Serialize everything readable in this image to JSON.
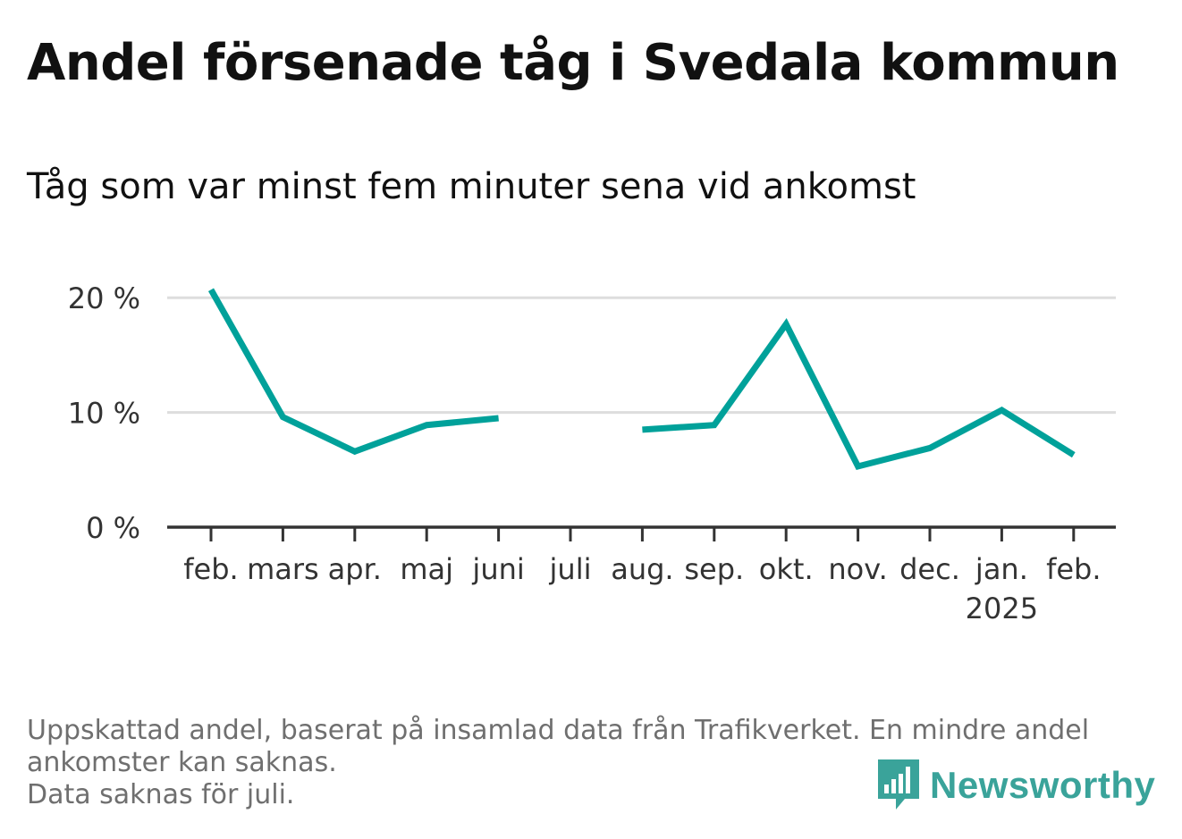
{
  "title": "Andel försenade tåg i Svedala kommun",
  "subtitle": "Tåg som var minst fem minuter sena vid ankomst",
  "footnote": {
    "line1": "Uppskattad andel, baserat på insamlad data från Trafikverket. En mindre andel",
    "line2": "ankomster kan saknas.",
    "line3": "Data saknas för juli."
  },
  "brand": {
    "name": "Newsworthy"
  },
  "colors": {
    "line": "#00a19a",
    "grid": "#dddddd",
    "axis": "#333333",
    "brand": "#3aa39a"
  },
  "chart_data": {
    "type": "line",
    "categories": [
      "feb.",
      "mars",
      "apr.",
      "maj",
      "juni",
      "juli",
      "aug.",
      "sep.",
      "okt.",
      "nov.",
      "dec.",
      "jan.",
      "feb."
    ],
    "year_label": {
      "index": 11,
      "text": "2025"
    },
    "series": [
      {
        "values": [
          20.7,
          9.6,
          6.6,
          8.9,
          9.5,
          null,
          8.5,
          8.9,
          17.7,
          5.3,
          6.9,
          10.2,
          6.3
        ]
      }
    ],
    "yticks": [
      0,
      10,
      20
    ],
    "ytick_labels": [
      "0 %",
      "10 %",
      "20 %"
    ],
    "ylim": [
      0,
      22.2
    ],
    "grid": true,
    "legend": "none"
  }
}
